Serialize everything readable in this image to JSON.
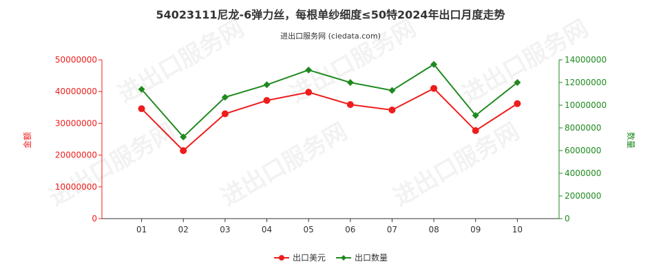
{
  "chart_data": {
    "type": "line",
    "title": "54023111尼龙-6弹力丝，每根单纱细度≤50特2024年出口月度走势",
    "subtitle": "进出口服务网 (ciedata.com)",
    "watermark": "进出口服务网",
    "categories": [
      "01",
      "02",
      "03",
      "04",
      "05",
      "06",
      "07",
      "08",
      "09",
      "10"
    ],
    "y_left": {
      "label": "金额",
      "range": [
        0,
        50000000
      ],
      "ticks": [
        "0",
        "10000000",
        "20000000",
        "30000000",
        "40000000",
        "50000000"
      ]
    },
    "y_right": {
      "label": "数量",
      "range": [
        0,
        14000000
      ],
      "ticks": [
        "0",
        "2000000",
        "4000000",
        "6000000",
        "8000000",
        "10000000",
        "12000000",
        "14000000"
      ]
    },
    "series": [
      {
        "name": "出口美元",
        "axis": "left",
        "color": "#ee1c1c",
        "values": [
          34600000,
          21400000,
          33000000,
          37200000,
          39800000,
          35900000,
          34200000,
          41000000,
          27700000,
          36200000
        ]
      },
      {
        "name": "出口数量",
        "axis": "right",
        "color": "#1e8a1e",
        "values": [
          11400000,
          7200000,
          10700000,
          11800000,
          13100000,
          12000000,
          11300000,
          13600000,
          9100000,
          12000000
        ]
      }
    ],
    "legend_position": "bottom-center",
    "grid": false
  }
}
